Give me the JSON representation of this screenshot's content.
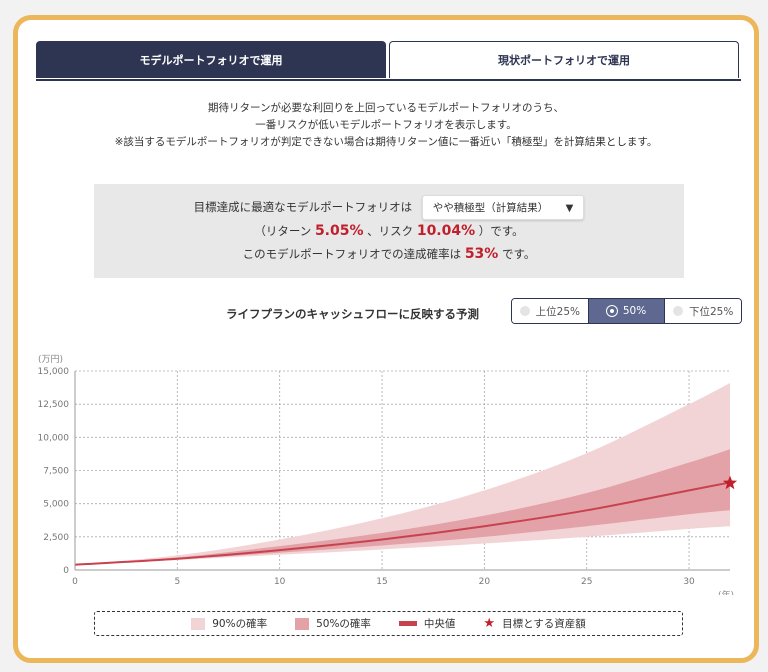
{
  "tabs": [
    {
      "label": "モデルポートフォリオで運用",
      "active": true
    },
    {
      "label": "現状ポートフォリオで運用",
      "active": false
    }
  ],
  "description": [
    "期待リターンが必要な利回りを上回っているモデルポートフォリオのうち、",
    "一番リスクが低いモデルポートフォリオを表示します。",
    "※該当するモデルポートフォリオが判定できない場合は期待リターン値に一番近い「積極型」を計算結果とします。"
  ],
  "summary": {
    "prefix": "目標達成に最適なモデルポートフォリオは",
    "select_value": "やや積極型（計算結果）",
    "return_prefix": "（リターン",
    "return_value": "5.05%",
    "risk_prefix": "、リスク",
    "risk_value": "10.04%",
    "risk_suffix": "）です。",
    "prob_prefix": "このモデルポートフォリオでの達成確率は",
    "prob_value": "53%",
    "prob_suffix": "です。"
  },
  "forecast": {
    "title": "ライフプランのキャッシュフローに反映する予測",
    "options": [
      {
        "label": "上位25%",
        "selected": false
      },
      {
        "label": "50%",
        "selected": true
      },
      {
        "label": "下位25%",
        "selected": false
      }
    ]
  },
  "chart_data": {
    "type": "area",
    "yunit": "(万円)",
    "xunit": "(年)",
    "xlim": [
      0,
      32
    ],
    "ylim": [
      0,
      15000
    ],
    "xticks": [
      "0",
      "5",
      "10",
      "15",
      "20",
      "25",
      "30"
    ],
    "yticks": [
      "0",
      "2,500",
      "5,000",
      "7,500",
      "10,000",
      "12,500",
      "15,000"
    ],
    "x": [
      0,
      5,
      10,
      15,
      20,
      25,
      30,
      32
    ],
    "median": [
      400,
      850,
      1500,
      2300,
      3300,
      4500,
      6000,
      6600
    ],
    "band50_low": [
      400,
      800,
      1300,
      1850,
      2500,
      3300,
      4200,
      4500
    ],
    "band50_high": [
      400,
      950,
      1800,
      2800,
      4100,
      5800,
      8100,
      9100
    ],
    "band90_low": [
      400,
      750,
      1150,
      1550,
      2000,
      2500,
      3100,
      3300
    ],
    "band90_high": [
      400,
      1100,
      2300,
      3900,
      6000,
      8800,
      12500,
      14100
    ],
    "target": {
      "x": 32,
      "y": 6550
    },
    "grid": true,
    "legend": [
      {
        "label": "90%の確率",
        "color": "#f2d4d6"
      },
      {
        "label": "50%の確率",
        "color": "#e2a2a8"
      },
      {
        "label": "中央値",
        "color": "#c8424e"
      },
      {
        "label": "目標とする資産額",
        "icon": "star-icon",
        "color": "#c0202c"
      }
    ],
    "colors": {
      "band90": "#f2d4d6",
      "band50": "#e2a2a8",
      "median": "#c8424e",
      "target": "#c0202c"
    }
  }
}
